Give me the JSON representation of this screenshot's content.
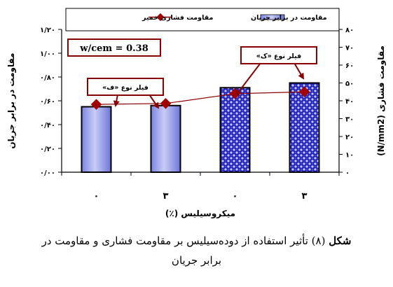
{
  "chart_data": {
    "type": "bar+line",
    "categories": [
      "۰",
      "۳",
      "۰",
      "۳"
    ],
    "series": [
      {
        "name": "مقاومت در برابر جریان",
        "axis": "left",
        "kind": "bar",
        "values": [
          0.55,
          0.56,
          0.71,
          0.75
        ],
        "styles": [
          "plain",
          "plain",
          "dotted",
          "dotted"
        ]
      },
      {
        "name": "مقاومت فشاری خمیر",
        "axis": "right",
        "kind": "line",
        "values": [
          38,
          38.5,
          44,
          45
        ]
      }
    ],
    "xlabel": "میکروسیلیس (٪)",
    "ylabel_left": "مقاومت در برابر جریان",
    "ylabel_right": "(N/mm2) مقاومت فشاری",
    "ylim_left": [
      0,
      1.2
    ],
    "yticks_left": [
      "۰/۰۰",
      "۰/۲۰",
      "۰/۴۰",
      "۰/۶۰",
      "۰/۸۰",
      "۱/۰۰",
      "۱/۲۰"
    ],
    "ylim_right": [
      0,
      80
    ],
    "yticks_right": [
      "۰",
      "۱۰",
      "۲۰",
      "۳۰",
      "۴۰",
      "۵۰",
      "۶۰",
      "۷۰",
      "۸۰"
    ],
    "legend_position": "top",
    "grid": false,
    "annotations": [
      {
        "text": "w/cem = 0.38"
      },
      {
        "text": "فیلر نوع «ف»"
      },
      {
        "text": "فیلر نوع «ک»"
      }
    ],
    "colors": {
      "bar_plain": "#9fa6ee",
      "bar_dotted": "#2020c0",
      "line": "#8b0000",
      "marker": "#a00000",
      "annotation_border": "#8b0000"
    }
  },
  "caption": {
    "label": "شکل",
    "number": "(۸)",
    "line1": "تأثیر استفاده از دوده‌سیلیس بر مقاومت فشاری و مقاومت در",
    "line2": "برابر جریان"
  }
}
